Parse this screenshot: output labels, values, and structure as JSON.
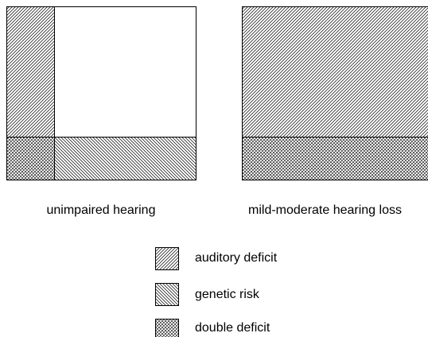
{
  "panels": [
    {
      "label": "unimpaired hearing"
    },
    {
      "label": "mild-moderate hearing loss"
    }
  ],
  "legend": [
    {
      "label": "auditory deficit"
    },
    {
      "label": "genetic risk"
    },
    {
      "label": "double deficit"
    }
  ]
}
